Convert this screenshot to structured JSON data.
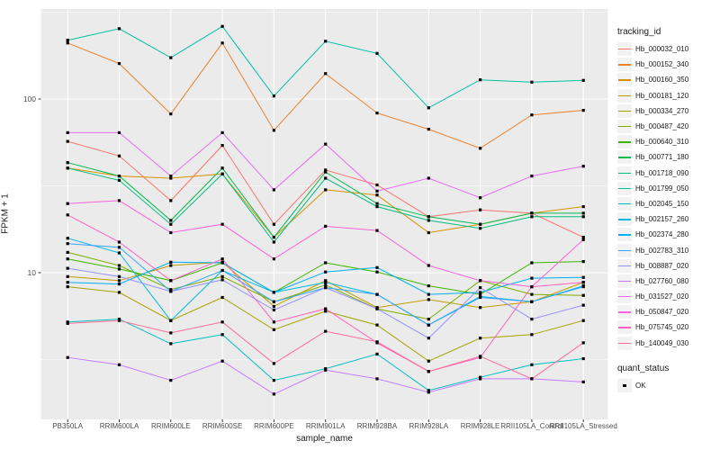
{
  "figure": {
    "page_background": "#FFFFFF",
    "panel_background": "#EBEBEB",
    "grid_color": "#FFFFFF",
    "tick_color": "#333333",
    "tick_label_color": "#4D4D4D",
    "point_color": "#000000"
  },
  "chart_data": {
    "type": "line",
    "title": "",
    "xlabel": "sample_name",
    "ylabel": "FPKM + 1",
    "y_scale": "log10",
    "ylim": [
      1.6,
      320
    ],
    "y_ticks": [
      10,
      100
    ],
    "y_tick_labels": [
      "10",
      "100"
    ],
    "y_minor_ticks": [
      3.162,
      31.62,
      316.2
    ],
    "grid": "on",
    "legend_position": "right",
    "point_shape": "filled-square",
    "categories": [
      "PB350LA",
      "RRIM600LA",
      "RRIM600LE",
      "RRIM600SE",
      "RRIM600PE",
      "RRIM901LA",
      "RRIM928BA",
      "RRIM928LA",
      "RRIM928LE",
      "RRII105LA_Control",
      "RRII105LA_Stressed"
    ],
    "series": [
      {
        "name": "Hb_000032_010",
        "color": "#F8766D",
        "values": [
          57,
          47,
          26,
          54,
          19,
          39,
          32,
          21,
          23,
          22,
          16
        ]
      },
      {
        "name": "Hb_000152_340",
        "color": "#EA8331",
        "values": [
          210,
          160,
          82,
          210,
          66,
          140,
          83,
          67,
          52,
          81,
          86
        ]
      },
      {
        "name": "Hb_000160_350",
        "color": "#D89000",
        "values": [
          40,
          36,
          35,
          37,
          16,
          30,
          28,
          17,
          19,
          22,
          24
        ]
      },
      {
        "name": "Hb_000181_120",
        "color": "#C09B00",
        "values": [
          9.5,
          9,
          11,
          11.5,
          6.4,
          9,
          6.3,
          7,
          6.3,
          6.8,
          8.8
        ]
      },
      {
        "name": "Hb_000334_270",
        "color": "#A3A500",
        "values": [
          8.3,
          7.7,
          5.3,
          7.2,
          4.7,
          6,
          5,
          3.1,
          4.2,
          4.4,
          5.3
        ]
      },
      {
        "name": "Hb_000487_420",
        "color": "#7CAE00",
        "values": [
          13.1,
          11,
          8,
          9.5,
          6.8,
          8.5,
          6.2,
          5.4,
          9,
          7.5,
          7.4
        ]
      },
      {
        "name": "Hb_000640_310",
        "color": "#39B600",
        "values": [
          12,
          10.5,
          9,
          11.4,
          7.7,
          11.4,
          10.1,
          8.4,
          7.5,
          11.4,
          11.6
        ]
      },
      {
        "name": "Hb_000771_180",
        "color": "#00BB4E",
        "values": [
          43,
          36,
          20,
          40,
          16,
          38,
          25,
          21,
          19,
          22,
          22
        ]
      },
      {
        "name": "Hb_001718_090",
        "color": "#00BF7D",
        "values": [
          40,
          34,
          19,
          37,
          15,
          35,
          24,
          20,
          18,
          21,
          21
        ]
      },
      {
        "name": "Hb_001799_050",
        "color": "#00C1A3",
        "values": [
          218,
          254,
          173,
          262,
          104,
          215,
          183,
          89,
          129,
          125,
          128
        ]
      },
      {
        "name": "Hb_002045_150",
        "color": "#00BFC4",
        "values": [
          5.2,
          5.4,
          3.9,
          4.4,
          2.4,
          2.8,
          3.4,
          2.1,
          2.5,
          2.95,
          3.2
        ]
      },
      {
        "name": "Hb_002157_260",
        "color": "#00BAE0",
        "values": [
          15.8,
          13,
          5.3,
          10.3,
          7.7,
          8.8,
          7.5,
          5,
          7.3,
          6.8,
          8.4
        ]
      },
      {
        "name": "Hb_002374_280",
        "color": "#00B0F6",
        "values": [
          8.8,
          8.6,
          11.5,
          11.4,
          7.7,
          10.1,
          10.7,
          7.5,
          7.7,
          9.3,
          9.4
        ]
      },
      {
        "name": "Hb_002783_310",
        "color": "#35A2FF",
        "values": [
          14.7,
          14,
          7.8,
          10.3,
          6.8,
          8.2,
          7.5,
          5,
          7.2,
          6.8,
          8.3
        ]
      },
      {
        "name": "Hb_008887_020",
        "color": "#9590FF",
        "values": [
          10.6,
          9.5,
          7.8,
          9.1,
          6.1,
          8.2,
          6.2,
          4.2,
          8.2,
          5.4,
          6.5
        ]
      },
      {
        "name": "Hb_027760_080",
        "color": "#C77CFF",
        "values": [
          3.25,
          2.95,
          2.4,
          3.1,
          2.0,
          2.75,
          2.45,
          2.05,
          2.45,
          2.45,
          2.35
        ]
      },
      {
        "name": "Hb_031527_020",
        "color": "#E76BF3",
        "values": [
          64,
          64,
          36,
          64,
          30,
          55,
          29.5,
          35,
          27,
          36,
          41
        ]
      },
      {
        "name": "Hb_050847_020",
        "color": "#FA62DB",
        "values": [
          25,
          26,
          17,
          19,
          12,
          18.5,
          17.5,
          11,
          9,
          8.3,
          15.5
        ]
      },
      {
        "name": "Hb_075745_020",
        "color": "#FF62BC",
        "values": [
          21.5,
          15,
          9,
          12,
          5.2,
          6.2,
          3.95,
          2.7,
          3.25,
          8.3,
          8.8
        ]
      },
      {
        "name": "Hb_140049_030",
        "color": "#FF6A98",
        "values": [
          5.1,
          5.3,
          4.5,
          5.2,
          3,
          4.6,
          4,
          2.7,
          3.3,
          2.45,
          3.95
        ]
      }
    ],
    "legend": {
      "color_title": "tracking_id",
      "shape_title": "quant_status",
      "shape_items": [
        {
          "label": "OK"
        }
      ]
    }
  }
}
